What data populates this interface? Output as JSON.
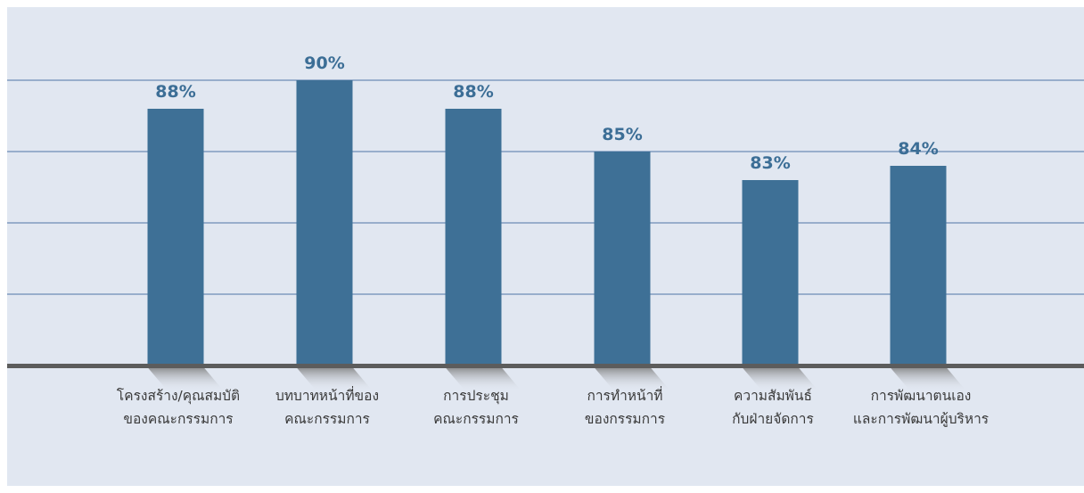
{
  "chart_data": {
    "type": "bar",
    "title": "",
    "xlabel": "",
    "ylabel": "",
    "categories": [
      [
        "โครงสร้าง/คุณสมบัติ",
        "ของคณะกรรมการ"
      ],
      [
        "บทบาทหน้าที่ของ",
        "คณะกรรมการ"
      ],
      [
        "การประชุม",
        "คณะกรรมการ"
      ],
      [
        "การทำหน้าที่",
        "ของกรรมการ"
      ],
      [
        "ความสัมพันธ์",
        "กับฝ่ายจัดการ"
      ],
      [
        "การพัฒนาตนเอง",
        "และการพัฒนาผู้บริหาร"
      ]
    ],
    "values": [
      88,
      90,
      88,
      85,
      83,
      84
    ],
    "value_labels": [
      "88%",
      "90%",
      "88%",
      "85%",
      "83%",
      "84%"
    ],
    "grid": true,
    "legend": "none",
    "colors": {
      "bar": "#3e7096",
      "background": "#e1e7f1",
      "gridline": "#4f74a8",
      "baseline": "#5c5c5c",
      "value_label": "#3c6e96",
      "category_label": "#3a3a3a"
    }
  }
}
